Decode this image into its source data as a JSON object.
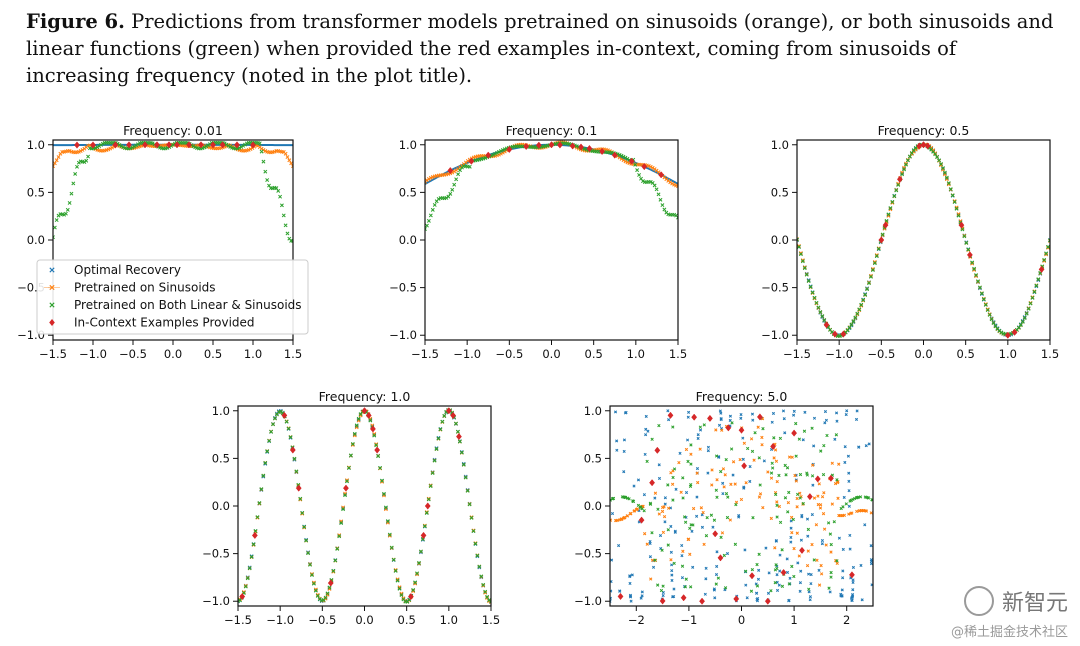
{
  "caption": {
    "label": "Figure 6.",
    "text": "Predictions from transformer models pretrained on sinusoids (orange), or both sinusoids and linear functions (green) when provided the red examples in-context, coming from sinusoids of increasing frequency (noted in the plot title)."
  },
  "watermark": {
    "logo": "新智元",
    "handle": "@稀土掘金技术社区"
  },
  "colors": {
    "optimal": "#1f77b4",
    "sinusoids": "#ff7f0e",
    "both": "#2ca02c",
    "examples": "#d62728"
  },
  "legend": {
    "placement": "lower-left of first panel",
    "entries": [
      "Optimal Recovery",
      "Pretrained on Sinusoids",
      "Pretrained on Both Linear & Sinusoids",
      "In-Context Examples Provided"
    ]
  },
  "chart_data": [
    {
      "type": "scatter",
      "title": "Frequency: 0.01",
      "freq": 0.01,
      "xlim": [
        -1.5,
        1.5
      ],
      "ylim": [
        -1.05,
        1.05
      ],
      "xticks": [
        -1.5,
        -1.0,
        -0.5,
        0.0,
        0.5,
        1.0,
        1.5
      ],
      "yticks": [
        -1.0,
        -0.5,
        0.0,
        0.5,
        1.0
      ],
      "series": [
        {
          "name": "Optimal Recovery",
          "function": "cos(2*pi*freq*x)"
        },
        {
          "name": "Pretrained on Sinusoids",
          "note": "follows curve with dips near edges"
        },
        {
          "name": "Pretrained on Both Linear & Sinusoids",
          "note": "drops to ~0 near |x|=1.5"
        },
        {
          "name": "In-Context Examples Provided",
          "x": [
            -1.2,
            -1.0,
            -0.72,
            -0.55,
            -0.35,
            -0.2,
            -0.05,
            0.05,
            0.2,
            0.35,
            0.5,
            0.62,
            0.8,
            1.0
          ]
        }
      ]
    },
    {
      "type": "scatter",
      "title": "Frequency: 0.1",
      "freq": 0.1,
      "xlim": [
        -1.5,
        1.5
      ],
      "ylim": [
        -1.05,
        1.05
      ],
      "xticks": [
        -1.5,
        -1.0,
        -0.5,
        0.0,
        0.5,
        1.0,
        1.5
      ],
      "yticks": [
        -1.0,
        -0.5,
        0.0,
        0.5,
        1.0
      ],
      "series": [
        {
          "name": "Optimal Recovery",
          "function": "cos(2*pi*freq*x)"
        },
        {
          "name": "Pretrained on Sinusoids"
        },
        {
          "name": "Pretrained on Both Linear & Sinusoids",
          "note": "drops to ~0.15 near edges"
        },
        {
          "name": "In-Context Examples Provided",
          "x": [
            -1.2,
            -0.95,
            -0.75,
            -0.5,
            -0.3,
            -0.15,
            0.0,
            0.1,
            0.25,
            0.35,
            0.45,
            0.6,
            0.75,
            0.95,
            1.1,
            1.3
          ]
        }
      ]
    },
    {
      "type": "scatter",
      "title": "Frequency: 0.5",
      "freq": 0.5,
      "xlim": [
        -1.5,
        1.5
      ],
      "ylim": [
        -1.05,
        1.05
      ],
      "xticks": [
        -1.5,
        -1.0,
        -0.5,
        0.0,
        0.5,
        1.0,
        1.5
      ],
      "yticks": [
        -1.0,
        -0.5,
        0.0,
        0.5,
        1.0
      ],
      "series": [
        {
          "name": "Optimal Recovery",
          "function": "cos(2*pi*freq*x)"
        },
        {
          "name": "Pretrained on Sinusoids"
        },
        {
          "name": "Pretrained on Both Linear & Sinusoids"
        },
        {
          "name": "In-Context Examples Provided",
          "x": [
            -1.15,
            -1.05,
            -0.95,
            -0.5,
            -0.45,
            -0.28,
            -0.05,
            0.0,
            0.05,
            0.45,
            0.55,
            1.0,
            1.08,
            1.4
          ]
        }
      ]
    },
    {
      "type": "scatter",
      "title": "Frequency: 1.0",
      "freq": 1.0,
      "xlim": [
        -1.5,
        1.5
      ],
      "ylim": [
        -1.05,
        1.05
      ],
      "xticks": [
        -1.5,
        -1.0,
        -0.5,
        0.0,
        0.5,
        1.0,
        1.5
      ],
      "yticks": [
        -1.0,
        -0.5,
        0.0,
        0.5,
        1.0
      ],
      "series": [
        {
          "name": "Optimal Recovery",
          "function": "cos(2*pi*freq*x)"
        },
        {
          "name": "Pretrained on Sinusoids"
        },
        {
          "name": "Pretrained on Both Linear & Sinusoids"
        },
        {
          "name": "In-Context Examples Provided",
          "x": [
            -1.45,
            -1.3,
            -0.95,
            -0.85,
            -0.78,
            -0.4,
            -0.22,
            0.0,
            0.05,
            0.1,
            0.15,
            0.55,
            0.7,
            0.75,
            1.0,
            1.05,
            1.12
          ]
        }
      ]
    },
    {
      "type": "scatter",
      "title": "Frequency: 5.0",
      "freq": 5.0,
      "xlim": [
        -2.5,
        2.5
      ],
      "ylim": [
        -1.05,
        1.05
      ],
      "xticks": [
        -2,
        -1,
        0,
        1,
        2
      ],
      "yticks": [
        -1.0,
        -0.5,
        0.0,
        0.5,
        1.0
      ],
      "series": [
        {
          "name": "Optimal Recovery",
          "function": "cos(2*pi*freq*x)"
        },
        {
          "name": "Pretrained on Sinusoids",
          "note": "noisy; smooth near |x|>1.8"
        },
        {
          "name": "Pretrained on Both Linear & Sinusoids",
          "note": "noisy; smooth near |x|>1.8"
        },
        {
          "name": "In-Context Examples Provided",
          "x": [
            -2.3,
            -1.9,
            -1.7,
            -1.6,
            -1.5,
            -1.35,
            -1.1,
            -0.9,
            -0.75,
            -0.6,
            -0.5,
            -0.4,
            -0.25,
            -0.1,
            0.0,
            0.05,
            0.2,
            0.35,
            0.5,
            0.6,
            0.8,
            1.0,
            1.15,
            1.3,
            1.45,
            1.7,
            2.1
          ]
        }
      ]
    }
  ]
}
